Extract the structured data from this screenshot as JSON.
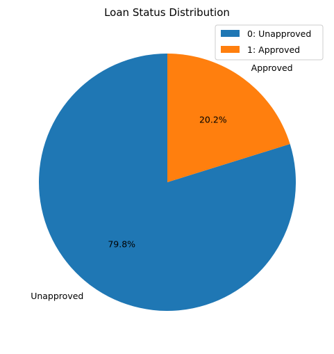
{
  "chart_data": {
    "type": "pie",
    "title": "Loan Status Distribution",
    "slices": [
      {
        "label": "Unapproved",
        "value": 79.8,
        "pct_label": "79.8%",
        "color": "#1f77b4"
      },
      {
        "label": "Approved",
        "value": 20.2,
        "pct_label": "20.2%",
        "color": "#ff7f0e"
      }
    ],
    "start_angle_deg": 90,
    "direction": "counterclockwise",
    "legend": {
      "placement": "top-right",
      "entries": [
        {
          "label": "0: Unapproved",
          "color": "#1f77b4"
        },
        {
          "label": "1: Approved",
          "color": "#ff7f0e"
        }
      ]
    }
  }
}
